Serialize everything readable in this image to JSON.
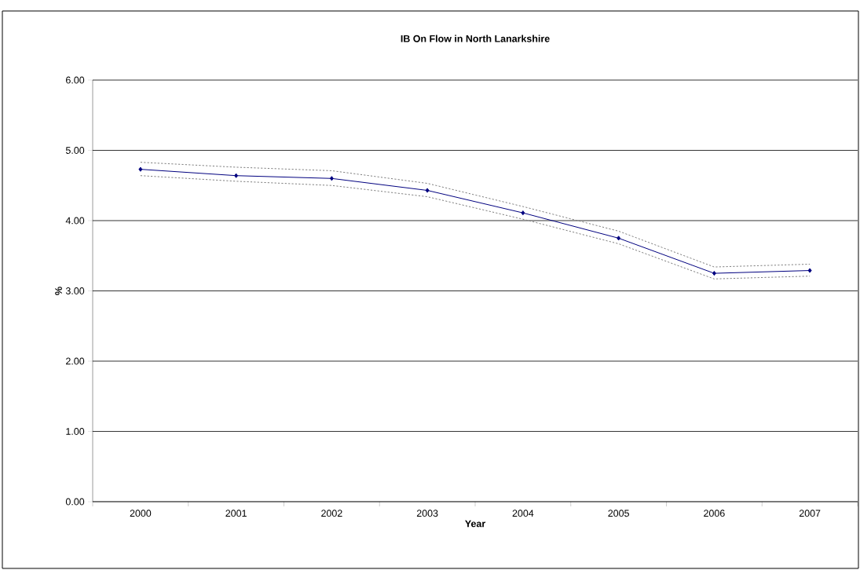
{
  "chart_data": {
    "type": "line",
    "title": "IB On Flow in North Lanarkshire",
    "xlabel": "Year",
    "ylabel": "%",
    "categories": [
      "2000",
      "2001",
      "2002",
      "2003",
      "2004",
      "2005",
      "2006",
      "2007"
    ],
    "series": [
      {
        "color": "#000080",
        "marker": "diamond",
        "line_style": "solid",
        "values": [
          4.73,
          4.64,
          4.6,
          4.43,
          4.11,
          3.75,
          3.25,
          3.29
        ]
      },
      {
        "color": "#808080",
        "marker": "none",
        "line_style": "dotted",
        "values": [
          4.83,
          4.76,
          4.71,
          4.53,
          4.2,
          3.85,
          3.34,
          3.38
        ]
      },
      {
        "color": "#808080",
        "marker": "none",
        "line_style": "dotted",
        "values": [
          4.64,
          4.56,
          4.5,
          4.34,
          4.02,
          3.67,
          3.17,
          3.21
        ]
      }
    ],
    "ylim": [
      0,
      6
    ],
    "yticks": [
      {
        "value": 0,
        "label": "0.00"
      },
      {
        "value": 1,
        "label": "1.00"
      },
      {
        "value": 2,
        "label": "2.00"
      },
      {
        "value": 3,
        "label": "3.00"
      },
      {
        "value": 4,
        "label": "4.00"
      },
      {
        "value": 5,
        "label": "5.00"
      },
      {
        "value": 6,
        "label": "6.00"
      }
    ],
    "grid": "y"
  }
}
